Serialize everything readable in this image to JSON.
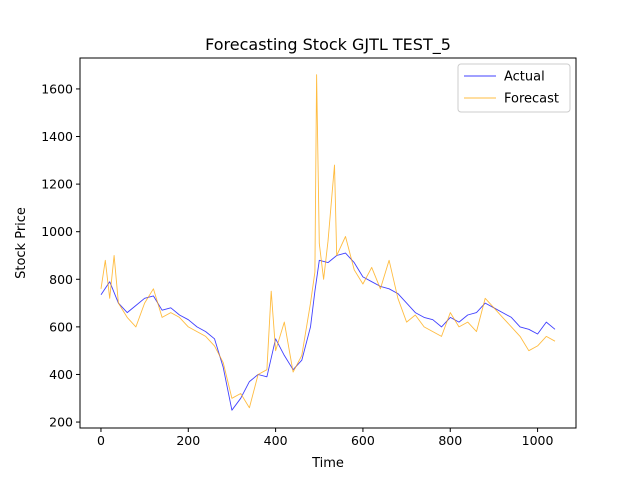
{
  "chart_data": {
    "type": "line",
    "title": "Forecasting Stock GJTL TEST_5",
    "xlabel": "Time",
    "ylabel": "Stock Price",
    "xlim": [
      -48,
      1088
    ],
    "ylim": [
      175,
      1730
    ],
    "x_ticks": [
      0,
      200,
      400,
      600,
      800,
      1000
    ],
    "y_ticks": [
      200,
      400,
      600,
      800,
      1000,
      1200,
      1400,
      1600
    ],
    "grid": false,
    "legend_position": "top-right",
    "series": [
      {
        "name": "Actual",
        "color": "#0000ff",
        "x": [
          0,
          20,
          40,
          60,
          80,
          100,
          120,
          140,
          160,
          180,
          200,
          220,
          240,
          260,
          280,
          300,
          320,
          340,
          360,
          380,
          400,
          420,
          440,
          460,
          480,
          490,
          500,
          520,
          540,
          560,
          580,
          600,
          620,
          640,
          660,
          680,
          700,
          720,
          740,
          760,
          780,
          800,
          820,
          840,
          860,
          880,
          900,
          920,
          940,
          960,
          980,
          1000,
          1020,
          1040
        ],
        "y": [
          735,
          790,
          700,
          660,
          690,
          720,
          730,
          670,
          680,
          650,
          630,
          600,
          580,
          550,
          430,
          250,
          300,
          370,
          400,
          390,
          550,
          480,
          420,
          460,
          600,
          750,
          880,
          870,
          900,
          910,
          870,
          810,
          790,
          770,
          760,
          740,
          700,
          660,
          640,
          630,
          600,
          640,
          620,
          650,
          660,
          700,
          680,
          660,
          640,
          600,
          590,
          570,
          620,
          590
        ]
      },
      {
        "name": "Forecast",
        "color": "#ffa500",
        "x": [
          0,
          10,
          20,
          30,
          40,
          60,
          80,
          100,
          120,
          140,
          160,
          180,
          200,
          220,
          240,
          260,
          280,
          300,
          320,
          340,
          360,
          380,
          390,
          400,
          420,
          440,
          460,
          480,
          490,
          494,
          500,
          510,
          520,
          535,
          540,
          560,
          580,
          600,
          620,
          640,
          660,
          680,
          700,
          720,
          740,
          760,
          780,
          800,
          820,
          840,
          860,
          880,
          900,
          920,
          940,
          960,
          980,
          1000,
          1020,
          1040
        ],
        "y": [
          760,
          880,
          720,
          900,
          700,
          640,
          600,
          700,
          760,
          640,
          660,
          640,
          600,
          580,
          560,
          520,
          450,
          300,
          320,
          260,
          400,
          420,
          750,
          500,
          620,
          410,
          480,
          700,
          830,
          1660,
          950,
          800,
          960,
          1280,
          900,
          980,
          840,
          780,
          850,
          760,
          880,
          720,
          620,
          650,
          600,
          580,
          560,
          660,
          600,
          620,
          580,
          720,
          680,
          640,
          600,
          560,
          500,
          520,
          560,
          540
        ]
      }
    ]
  }
}
